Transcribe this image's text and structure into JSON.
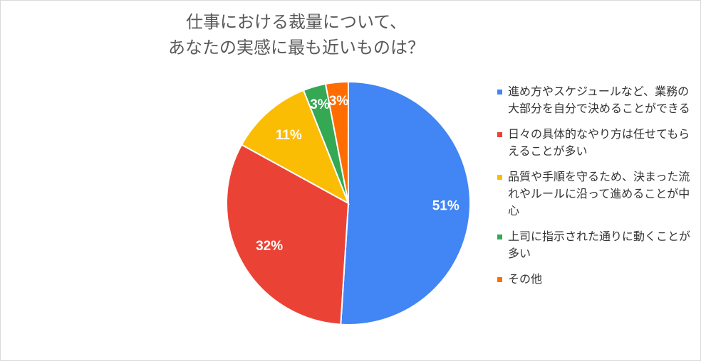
{
  "chart_data": {
    "type": "pie",
    "title_lines": [
      "仕事における裁量について、",
      "あなたの実感に最も近いものは？"
    ],
    "slices": [
      {
        "label": "進め方やスケジュールなど、業務の大部分を自分で決めることができる",
        "value": 51,
        "display": "51%",
        "color": "#4285f4"
      },
      {
        "label": "日々の具体的なやり方は任せてもらえることが多い",
        "value": 32,
        "display": "32%",
        "color": "#ea4335"
      },
      {
        "label": "品質や手順を守るため、決まった流れやルールに沿って進めることが中心",
        "value": 11,
        "display": "11%",
        "color": "#fbbc04"
      },
      {
        "label": "上司に指示された通りに動くことが多い",
        "value": 3,
        "display": "3%",
        "color": "#34a853"
      },
      {
        "label": "その他",
        "value": 3,
        "display": "3%",
        "color": "#ff6d01"
      }
    ],
    "legend_position": "right"
  }
}
